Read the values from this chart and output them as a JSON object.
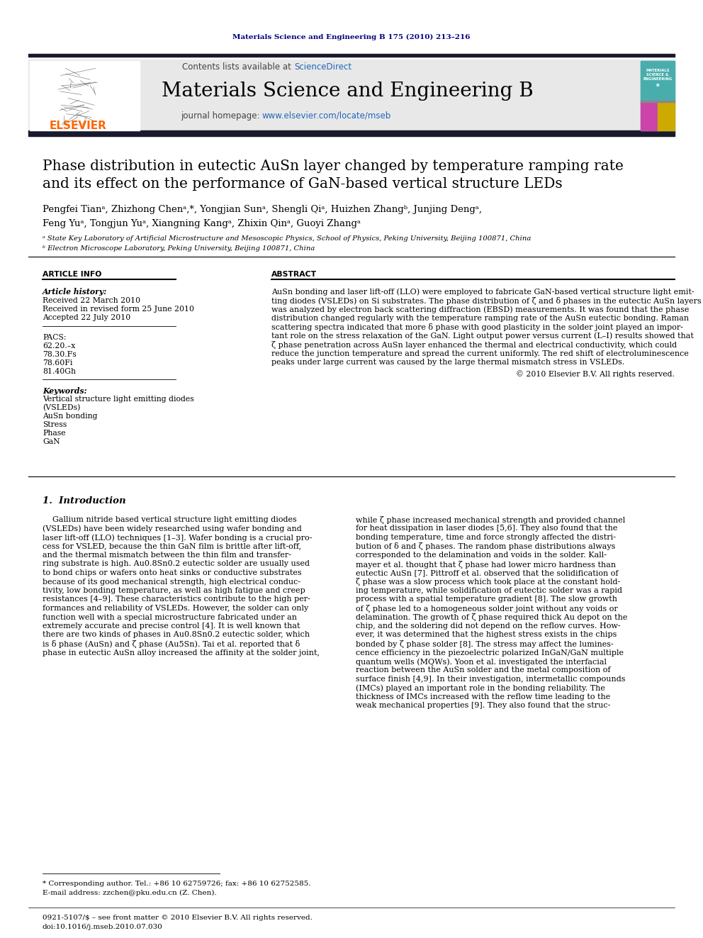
{
  "journal_ref": "Materials Science and Engineering B 175 (2010) 213–216",
  "journal_name": "Materials Science and Engineering B",
  "contents_line": "Contents lists available at ScienceDirect",
  "journal_url": "journal homepage: www.elsevier.com/locate/mseb",
  "title_line1": "Phase distribution in eutectic AuSn layer changed by temperature ramping rate",
  "title_line2": "and its effect on the performance of GaN-based vertical structure LEDs",
  "authors_line1": "Pengfei Tianᵃ, Zhizhong Chenᵃ,*, Yongjian Sunᵃ, Shengli Qiᵃ, Huizhen Zhangᵇ, Junjing Dengᵃ,",
  "authors_line2": "Feng Yuᵃ, Tongjun Yuᵃ, Xiangning Kangᵃ, Zhixin Qinᵃ, Guoyi Zhangᵃ",
  "affil_a": "ᵃ State Key Laboratory of Artificial Microstructure and Mesoscopic Physics, School of Physics, Peking University, Beijing 100871, China",
  "affil_b": "ᵇ Electron Microscope Laboratory, Peking University, Beijing 100871, China",
  "section_article_info": "ARTICLE INFO",
  "section_abstract": "ABSTRACT",
  "article_history_label": "Article history:",
  "received": "Received 22 March 2010",
  "received_revised": "Received in revised form 25 June 2010",
  "accepted": "Accepted 22 July 2010",
  "pacs_label": "PACS:",
  "pacs_codes": [
    "62.20.–x",
    "78.30.Fs",
    "78.60Fi",
    "81.40Gh"
  ],
  "keywords_label": "Keywords:",
  "keywords": [
    "Vertical structure light emitting diodes",
    "(VSLEDs)",
    "AuSn bonding",
    "Stress",
    "Phase",
    "GaN"
  ],
  "abstract_lines": [
    "AuSn bonding and laser lift-off (LLO) were employed to fabricate GaN-based vertical structure light emit-",
    "ting diodes (VSLEDs) on Si substrates. The phase distribution of ζ and δ phases in the eutectic AuSn layers",
    "was analyzed by electron back scattering diffraction (EBSD) measurements. It was found that the phase",
    "distribution changed regularly with the temperature ramping rate of the AuSn eutectic bonding. Raman",
    "scattering spectra indicated that more δ phase with good plasticity in the solder joint played an impor-",
    "tant role on the stress relaxation of the GaN. Light output power versus current (L–I) results showed that",
    "ζ phase penetration across AuSn layer enhanced the thermal and electrical conductivity, which could",
    "reduce the junction temperature and spread the current uniformly. The red shift of electroluminescence",
    "peaks under large current was caused by the large thermal mismatch stress in VSLEDs."
  ],
  "copyright": "© 2010 Elsevier B.V. All rights reserved.",
  "intro_heading": "1.  Introduction",
  "intro_left_lines": [
    "    Gallium nitride based vertical structure light emitting diodes",
    "(VSLEDs) have been widely researched using wafer bonding and",
    "laser lift-off (LLO) techniques [1–3]. Wafer bonding is a crucial pro-",
    "cess for VSLED, because the thin GaN film is brittle after lift-off,",
    "and the thermal mismatch between the thin film and transfer-",
    "ring substrate is high. Au0.8Sn0.2 eutectic solder are usually used",
    "to bond chips or wafers onto heat sinks or conductive substrates",
    "because of its good mechanical strength, high electrical conduc-",
    "tivity, low bonding temperature, as well as high fatigue and creep",
    "resistances [4–9]. These characteristics contribute to the high per-",
    "formances and reliability of VSLEDs. However, the solder can only",
    "function well with a special microstructure fabricated under an",
    "extremely accurate and precise control [4]. It is well known that",
    "there are two kinds of phases in Au0.8Sn0.2 eutectic solder, which",
    "is δ phase (AuSn) and ζ phase (Au5Sn). Tai et al. reported that δ",
    "phase in eutectic AuSn alloy increased the affinity at the solder joint,"
  ],
  "intro_right_lines": [
    "while ζ phase increased mechanical strength and provided channel",
    "for heat dissipation in laser diodes [5,6]. They also found that the",
    "bonding temperature, time and force strongly affected the distri-",
    "bution of δ and ζ phases. The random phase distributions always",
    "corresponded to the delamination and voids in the solder. Kall-",
    "mayer et al. thought that ζ phase had lower micro hardness than",
    "eutectic AuSn [7]. Pittroff et al. observed that the solidification of",
    "ζ phase was a slow process which took place at the constant hold-",
    "ing temperature, while solidification of eutectic solder was a rapid",
    "process with a spatial temperature gradient [8]. The slow growth",
    "of ζ phase led to a homogeneous solder joint without any voids or",
    "delamination. The growth of ζ phase required thick Au depot on the",
    "chip, and the soldering did not depend on the reflow curves. How-",
    "ever, it was determined that the highest stress exists in the chips",
    "bonded by ζ phase solder [8]. The stress may affect the lumines-",
    "cence efficiency in the piezoelectric polarized InGaN/GaN multiple",
    "quantum wells (MQWs). Yoon et al. investigated the interfacial",
    "reaction between the AuSn solder and the metal composition of",
    "surface finish [4,9]. In their investigation, intermetallic compounds",
    "(IMCs) played an important role in the bonding reliability. The",
    "thickness of IMCs increased with the reflow time leading to the",
    "weak mechanical properties [9]. They also found that the struc-"
  ],
  "footnote_star": "* Corresponding author. Tel.: +86 10 62759726; fax: +86 10 62752585.",
  "footnote_email": "E-mail address: zzchen@pku.edu.cn (Z. Chen).",
  "footer_issn": "0921-5107/$ – see front matter © 2010 Elsevier B.V. All rights reserved.",
  "footer_doi": "doi:10.1016/j.mseb.2010.07.030",
  "bg_color": "#ffffff",
  "dark_bar_color": "#1a1a2e",
  "journal_ref_color": "#000080",
  "sciencedirect_color": "#2266bb",
  "url_color": "#2266bb",
  "elsevier_orange": "#ff6600",
  "cover_teal": "#6dbdbd",
  "cover_pink": "#cc44aa",
  "cover_yellow": "#ccaa00"
}
